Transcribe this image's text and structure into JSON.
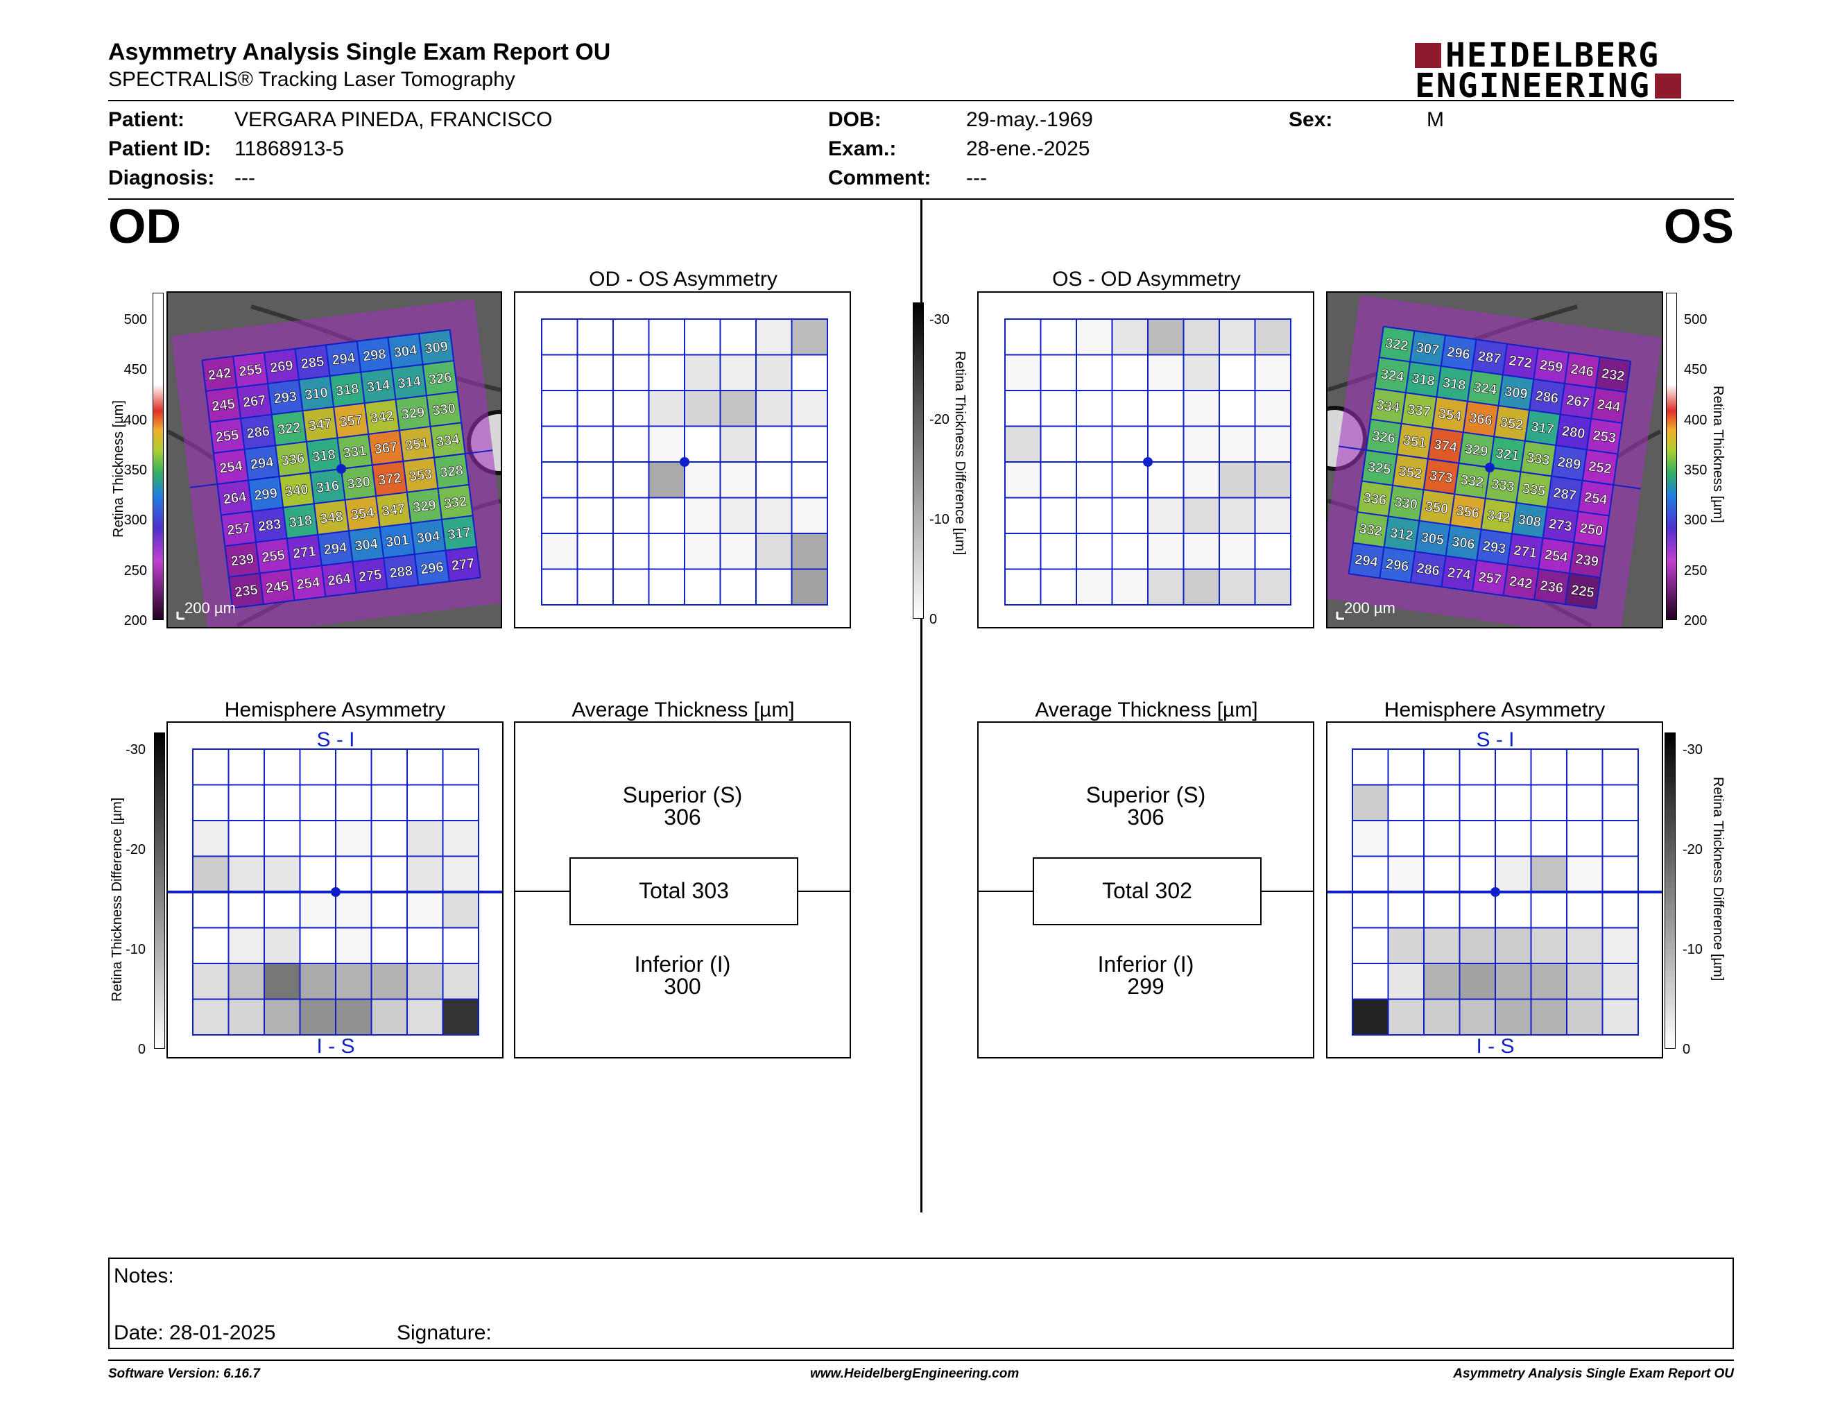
{
  "header": {
    "title": "Asymmetry Analysis Single Exam Report OU",
    "subtitle": "SPECTRALIS® Tracking Laser Tomography",
    "logo_line1": "HEIDELBERG",
    "logo_line2": "ENGINEERING",
    "brand_color": "#8e1a2e"
  },
  "patient": {
    "patient_label": "Patient:",
    "patient_value": "VERGARA PINEDA, FRANCISCO",
    "id_label": "Patient ID:",
    "id_value": "11868913-5",
    "diag_label": "Diagnosis:",
    "diag_value": "---",
    "dob_label": "DOB:",
    "dob_value": "29-may.-1969",
    "exam_label": "Exam.:",
    "exam_value": "28-ene.-2025",
    "comment_label": "Comment:",
    "comment_value": "---",
    "sex_label": "Sex:",
    "sex_value": "M"
  },
  "od": {
    "eye_label": "OD",
    "asym_title": "OD - OS Asymmetry",
    "hemi_title": "Hemisphere Asymmetry",
    "avg_title": "Average Thickness [µm]",
    "scale_bar": "200 µm",
    "hemi_top": "S - I",
    "hemi_bottom": "I - S",
    "superior_label": "Superior (S)",
    "superior_value": "306",
    "total_label": "Total 303",
    "inferior_label": "Inferior (I)",
    "inferior_value": "300",
    "thickness": [
      [
        242,
        255,
        269,
        285,
        294,
        298,
        304,
        309
      ],
      [
        245,
        267,
        293,
        310,
        318,
        314,
        314,
        326
      ],
      [
        255,
        286,
        322,
        347,
        357,
        342,
        329,
        330
      ],
      [
        254,
        294,
        336,
        318,
        331,
        367,
        351,
        334
      ],
      [
        264,
        299,
        340,
        316,
        330,
        372,
        353,
        328
      ],
      [
        257,
        283,
        318,
        348,
        354,
        347,
        329,
        332
      ],
      [
        239,
        255,
        271,
        294,
        304,
        301,
        304,
        317
      ],
      [
        235,
        245,
        254,
        264,
        275,
        288,
        296,
        277
      ]
    ],
    "asym_gray": [
      [
        0,
        0,
        0,
        0,
        0,
        0,
        2,
        8
      ],
      [
        0,
        0,
        0,
        0,
        3,
        2,
        3,
        0
      ],
      [
        0,
        0,
        0,
        3,
        5,
        7,
        3,
        2
      ],
      [
        0,
        0,
        0,
        1,
        0,
        3,
        0,
        0
      ],
      [
        0,
        0,
        0,
        10,
        1,
        1,
        0,
        0
      ],
      [
        0,
        0,
        0,
        0,
        1,
        2,
        2,
        1
      ],
      [
        1,
        0,
        0,
        0,
        1,
        1,
        4,
        10
      ],
      [
        0,
        0,
        0,
        0,
        0,
        0,
        0,
        11
      ]
    ],
    "hemi_gray": [
      [
        0,
        0,
        0,
        0,
        0,
        0,
        0,
        0
      ],
      [
        0,
        0,
        0,
        0,
        0,
        0,
        0,
        0
      ],
      [
        2,
        0,
        0,
        0,
        1,
        0,
        3,
        2
      ],
      [
        6,
        3,
        3,
        0,
        0,
        0,
        3,
        2
      ],
      [
        0,
        0,
        0,
        1,
        1,
        0,
        1,
        4
      ],
      [
        0,
        2,
        3,
        0,
        1,
        0,
        0,
        0
      ],
      [
        4,
        7,
        16,
        10,
        9,
        9,
        6,
        4
      ],
      [
        4,
        5,
        9,
        13,
        13,
        6,
        4,
        24
      ]
    ]
  },
  "os": {
    "eye_label": "OS",
    "asym_title": "OS - OD Asymmetry",
    "hemi_title": "Hemisphere Asymmetry",
    "avg_title": "Average Thickness [µm]",
    "scale_bar": "200 µm",
    "hemi_top": "S - I",
    "hemi_bottom": "I - S",
    "superior_label": "Superior (S)",
    "superior_value": "306",
    "total_label": "Total 302",
    "inferior_label": "Inferior (I)",
    "inferior_value": "299",
    "thickness": [
      [
        322,
        307,
        296,
        287,
        272,
        259,
        246,
        232
      ],
      [
        324,
        318,
        318,
        324,
        309,
        286,
        267,
        244
      ],
      [
        334,
        337,
        354,
        366,
        352,
        317,
        280,
        253
      ],
      [
        326,
        351,
        374,
        329,
        321,
        333,
        289,
        252
      ],
      [
        325,
        352,
        373,
        332,
        333,
        335,
        287,
        254
      ],
      [
        336,
        330,
        350,
        356,
        342,
        308,
        273,
        250
      ],
      [
        332,
        312,
        305,
        306,
        293,
        271,
        254,
        239
      ],
      [
        294,
        296,
        286,
        274,
        257,
        242,
        236,
        225
      ]
    ],
    "asym_gray": [
      [
        0,
        0,
        1,
        3,
        8,
        4,
        3,
        5
      ],
      [
        1,
        0,
        0,
        0,
        1,
        3,
        0,
        1
      ],
      [
        0,
        0,
        0,
        0,
        0,
        1,
        0,
        1
      ],
      [
        4,
        0,
        0,
        0,
        0,
        1,
        1,
        1
      ],
      [
        1,
        0,
        0,
        0,
        0,
        1,
        5,
        5
      ],
      [
        0,
        0,
        0,
        0,
        2,
        4,
        3,
        2
      ],
      [
        0,
        0,
        0,
        0,
        1,
        1,
        1,
        0
      ],
      [
        0,
        0,
        1,
        1,
        4,
        6,
        4,
        4
      ]
    ],
    "hemi_gray": [
      [
        0,
        0,
        0,
        0,
        0,
        0,
        0,
        0
      ],
      [
        6,
        0,
        0,
        0,
        0,
        0,
        0,
        0
      ],
      [
        1,
        0,
        0,
        0,
        0,
        0,
        0,
        0
      ],
      [
        0,
        1,
        0,
        0,
        2,
        7,
        1,
        0
      ],
      [
        0,
        0,
        0,
        0,
        0,
        0,
        0,
        0
      ],
      [
        0,
        5,
        5,
        6,
        6,
        5,
        4,
        2
      ],
      [
        0,
        3,
        9,
        11,
        9,
        9,
        6,
        3
      ],
      [
        26,
        5,
        6,
        7,
        9,
        9,
        6,
        3
      ]
    ]
  },
  "scales": {
    "thickness_label": "Retina Thickness [µm]",
    "thickness_ticks": [
      "500",
      "450",
      "400",
      "350",
      "300",
      "250",
      "200"
    ],
    "diff_label": "Retina Thickness Difference [µm]",
    "diff_ticks": [
      "-30",
      "-20",
      "-10",
      "0"
    ]
  },
  "notes": {
    "notes_label": "Notes:",
    "date_label": "Date: 28-01-2025",
    "signature_label": "Signature:"
  },
  "footer": {
    "software": "Software Version: 6.16.7",
    "website": "www.HeidelbergEngineering.com",
    "report": "Asymmetry Analysis Single Exam Report OU"
  }
}
